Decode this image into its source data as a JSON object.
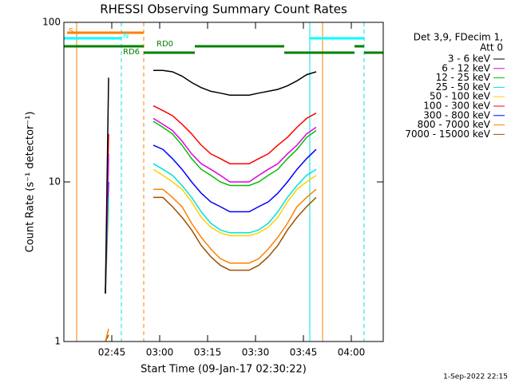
{
  "chart_data": {
    "type": "line",
    "title": "RHESSI Observing Summary Count Rates",
    "xlabel": "Start Time (09-Jan-17 02:30:22)",
    "ylabel": "Count Rate (s⁻¹ detector⁻¹)",
    "footer": "1-Sep-2022 22:15",
    "legend_title": [
      "Det 3,9, FDecim 1,",
      "Att 0"
    ],
    "log_y": true,
    "xlim": [
      "02:30",
      "04:10"
    ],
    "xticks": [
      "02:45",
      "03:00",
      "03:15",
      "03:30",
      "03:45",
      "04:00"
    ],
    "ylim": [
      1,
      100
    ],
    "yticks": [
      1,
      10,
      100
    ],
    "x": [
      "02:43",
      "02:44",
      "02:47",
      "02:58",
      "03:01",
      "03:04",
      "03:07",
      "03:10",
      "03:13",
      "03:16",
      "03:19",
      "03:22",
      "03:25",
      "03:28",
      "03:31",
      "03:34",
      "03:37",
      "03:40",
      "03:43",
      "03:46",
      "03:49"
    ],
    "series": [
      {
        "name": "3 - 6 keV",
        "color": "#000000",
        "values": [
          2,
          45,
          null,
          50,
          50,
          49,
          46,
          42,
          39,
          37,
          36,
          35,
          35,
          35,
          36,
          37,
          38,
          40,
          43,
          47,
          49
        ]
      },
      {
        "name": "6 - 12 keV",
        "color": "#e000e0",
        "values": [
          2,
          15,
          null,
          25,
          23,
          21,
          18,
          15,
          13,
          12,
          11,
          10,
          10,
          10,
          11,
          12,
          13,
          15,
          17,
          20,
          22
        ]
      },
      {
        "name": "12 - 25 keV",
        "color": "#00c000",
        "values": [
          2,
          14,
          null,
          24,
          22,
          20,
          17,
          14,
          12,
          11,
          10,
          9.5,
          9.5,
          9.5,
          10,
          11,
          12,
          14,
          16,
          19,
          21
        ]
      },
      {
        "name": "25 - 50 keV",
        "color": "#00e0e0",
        "values": [
          2,
          8,
          null,
          13,
          12,
          11,
          9.5,
          8,
          6.5,
          5.5,
          5,
          4.8,
          4.8,
          4.8,
          5,
          5.5,
          6.5,
          8,
          9.5,
          11,
          12
        ]
      },
      {
        "name": "50 - 100 keV",
        "color": "#ffd000",
        "values": [
          2,
          7,
          null,
          12,
          11,
          10,
          9,
          7.5,
          6,
          5.2,
          4.8,
          4.6,
          4.6,
          4.6,
          4.8,
          5.2,
          6,
          7.5,
          9,
          10,
          11
        ]
      },
      {
        "name": "100 - 300 keV",
        "color": "#ff0000",
        "values": [
          2,
          20,
          null,
          30,
          28,
          26,
          23,
          20,
          17,
          15,
          14,
          13,
          13,
          13,
          14,
          15,
          17,
          19,
          22,
          25,
          27
        ]
      },
      {
        "name": "300 - 800 keV",
        "color": "#0000ff",
        "values": [
          2,
          10,
          null,
          17,
          16,
          14,
          12,
          10,
          8.5,
          7.5,
          7,
          6.5,
          6.5,
          6.5,
          7,
          7.5,
          8.5,
          10,
          12,
          14,
          16
        ]
      },
      {
        "name": "800 - 7000 keV",
        "color": "#ff8000",
        "values": [
          1,
          1.2,
          null,
          9,
          9,
          8,
          7,
          5.5,
          4.5,
          3.8,
          3.3,
          3.1,
          3.1,
          3.1,
          3.3,
          3.8,
          4.5,
          5.5,
          7,
          8,
          9
        ]
      },
      {
        "name": "7000 - 15000 keV",
        "color": "#a05000",
        "values": [
          1,
          1.1,
          null,
          8,
          8,
          7,
          6,
          5,
          4,
          3.4,
          3,
          2.8,
          2.8,
          2.8,
          3,
          3.4,
          4,
          5,
          6,
          7,
          8
        ]
      }
    ],
    "flags": [
      {
        "label": "S",
        "color": "#ff8000",
        "segments": [
          [
            "02:31",
            "02:55"
          ]
        ]
      },
      {
        "label": "N",
        "color": "#00ffff",
        "segments": [
          [
            "02:30",
            "02:48"
          ],
          [
            "03:47",
            "04:04"
          ]
        ]
      },
      {
        "label": "RD0",
        "color": "#008000",
        "segments": [
          [
            "02:30",
            "02:55"
          ],
          [
            "03:11",
            "03:39"
          ],
          [
            "04:01",
            "04:04"
          ]
        ]
      },
      {
        "label": "RD6",
        "color": "#008000",
        "segments": [
          [
            "02:55",
            "03:11"
          ],
          [
            "03:39",
            "04:01"
          ],
          [
            "04:04",
            "04:10"
          ]
        ]
      }
    ],
    "markers": [
      {
        "time": "02:30",
        "color": "#00e0e0",
        "dashed": false
      },
      {
        "time": "02:34",
        "color": "#ff8000",
        "dashed": false
      },
      {
        "time": "02:48",
        "color": "#00e0e0",
        "dashed": true
      },
      {
        "time": "02:55",
        "color": "#ff8000",
        "dashed": true
      },
      {
        "time": "03:47",
        "color": "#00e0e0",
        "dashed": false
      },
      {
        "time": "03:51",
        "color": "#ff8000",
        "dashed": false
      },
      {
        "time": "04:04",
        "color": "#00e0e0",
        "dashed": true
      }
    ]
  }
}
